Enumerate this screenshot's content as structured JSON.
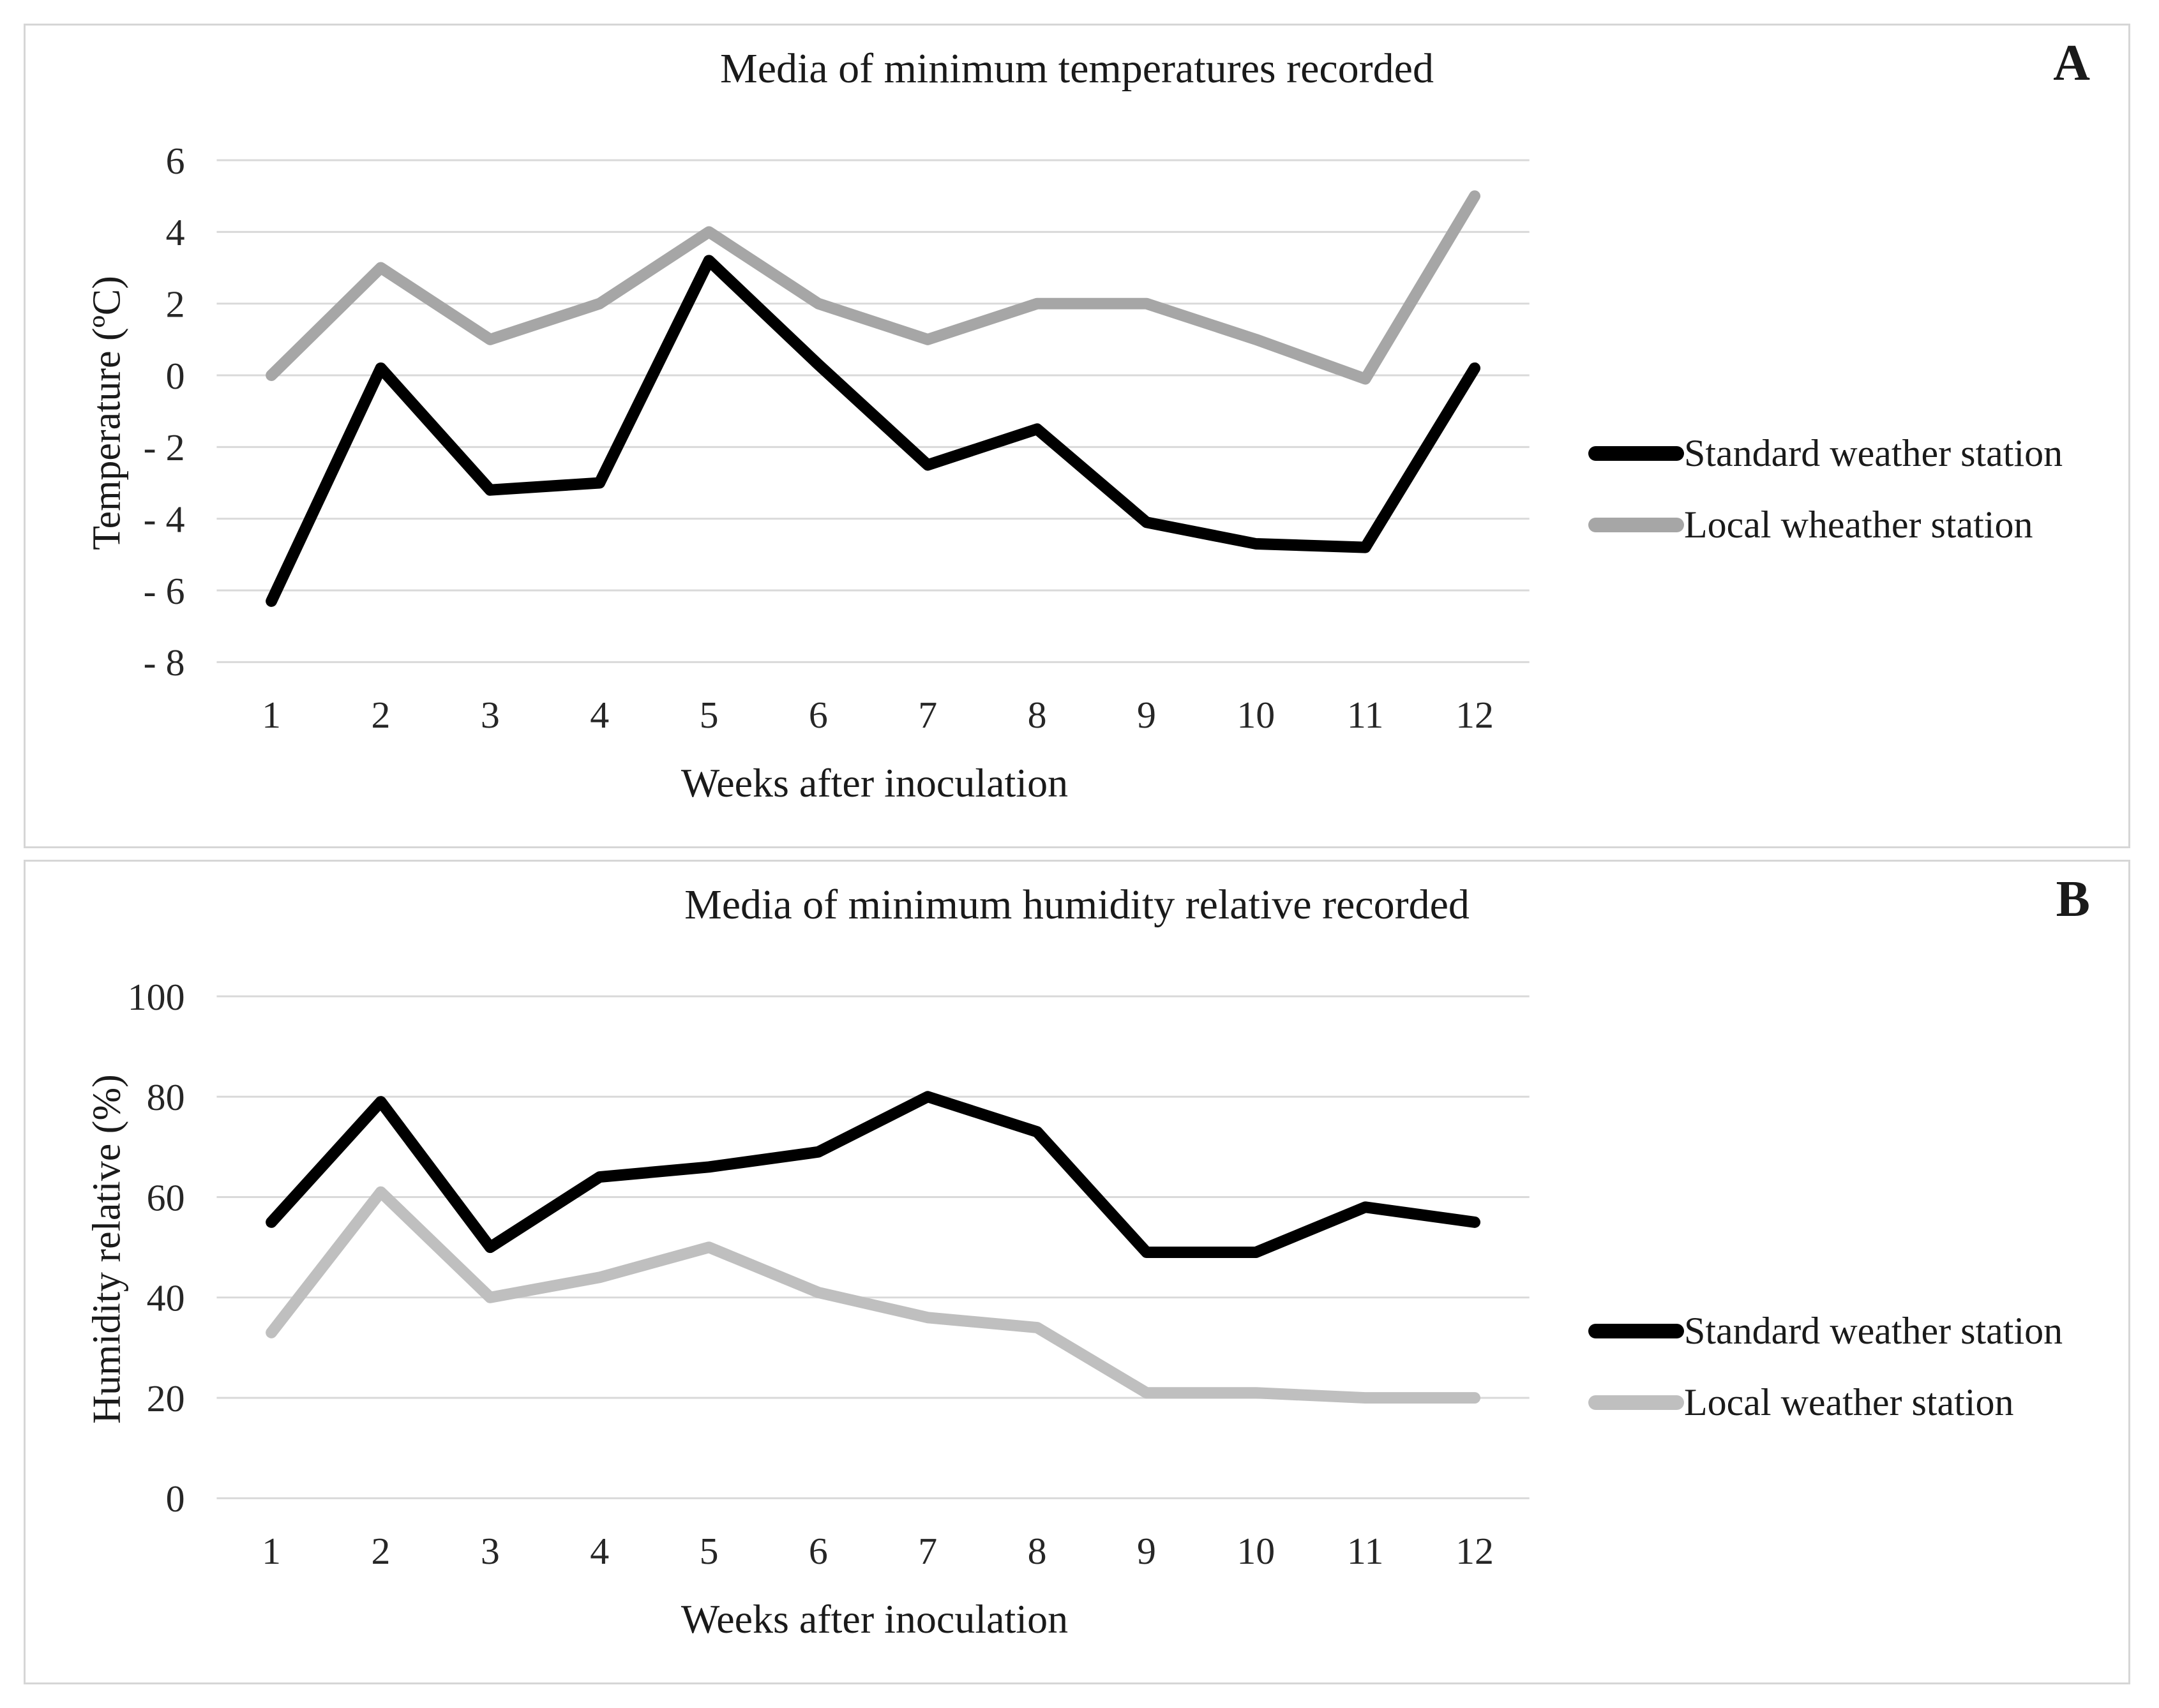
{
  "colors": {
    "gridline": "#d9d9d9",
    "panel_border": "#d6d6d6",
    "background": "#ffffff",
    "standard_series": "#000000",
    "local_series_a": "#a6a6a6",
    "local_series_b": "#bfbfbf"
  },
  "chart_data": [
    {
      "type": "line",
      "panel_label": "A",
      "title": "Media of minimum temperatures recorded",
      "xlabel": "Weeks after inoculation",
      "ylabel": "Temperature (ºC)",
      "categories": [
        1,
        2,
        3,
        4,
        5,
        6,
        7,
        8,
        9,
        10,
        11,
        12
      ],
      "ylim": [
        -8,
        6
      ],
      "y_ticks": [
        6,
        4,
        2,
        0,
        -2,
        -4,
        -6,
        -8
      ],
      "y_tick_labels": [
        "6",
        "4",
        "2",
        "0",
        "- 2",
        "- 4",
        "- 6",
        "- 8"
      ],
      "grid": true,
      "legend_position": "right",
      "series": [
        {
          "name": "Standard weather station",
          "color": "#000000",
          "values": [
            -6.3,
            0.2,
            -3.2,
            -3,
            3.2,
            0.3,
            -2.5,
            -1.5,
            -4.1,
            -4.7,
            -4.8,
            0.2
          ]
        },
        {
          "name": "Local wheather station",
          "color": "#a6a6a6",
          "values": [
            0,
            3,
            1,
            2,
            4,
            2,
            1,
            2,
            2,
            1,
            -0.1,
            5
          ]
        }
      ]
    },
    {
      "type": "line",
      "panel_label": "B",
      "title": "Media of minimum humidity relative recorded",
      "xlabel": "Weeks after inoculation",
      "ylabel": "Humidity relative  (%)",
      "categories": [
        1,
        2,
        3,
        4,
        5,
        6,
        7,
        8,
        9,
        10,
        11,
        12
      ],
      "ylim": [
        0,
        100
      ],
      "y_ticks": [
        100,
        80,
        60,
        40,
        20,
        0
      ],
      "y_tick_labels": [
        "100",
        "80",
        "60",
        "40",
        "20",
        "0"
      ],
      "grid": true,
      "legend_position": "right",
      "series": [
        {
          "name": "Standard weather station",
          "color": "#000000",
          "values": [
            55,
            79,
            50,
            64,
            66,
            69,
            80,
            73,
            49,
            49,
            58,
            55
          ]
        },
        {
          "name": "Local weather station",
          "color": "#bfbfbf",
          "values": [
            33,
            61,
            40,
            44,
            50,
            41,
            36,
            34,
            21,
            21,
            20,
            20
          ]
        }
      ]
    }
  ]
}
